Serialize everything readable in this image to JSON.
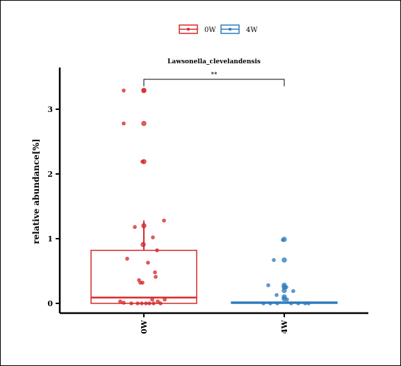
{
  "chart_data": {
    "type": "box",
    "title": "Lawsonella_clevelandensis",
    "ylabel": "relative abundance[%]",
    "xlabel": "",
    "categories": [
      "0W",
      "4W"
    ],
    "ylim": [
      -0.15,
      3.6
    ],
    "yticks": [
      "0",
      "1",
      "2",
      "3"
    ],
    "legend": {
      "position": "top-center",
      "entries": [
        {
          "name": "0W",
          "color": "#d62728"
        },
        {
          "name": "4W",
          "color": "#2e7bbf"
        }
      ]
    },
    "significance": {
      "groups": [
        "0W",
        "4W"
      ],
      "label": "**"
    },
    "boxes": [
      {
        "name": "0W",
        "color": "#d62728",
        "q1": 0.0,
        "median": 0.09,
        "q3": 0.82,
        "whisker_low": 0.0,
        "whisker_high": 1.28,
        "points": [
          [
            -0.29,
            3.29
          ],
          [
            0.0,
            3.29
          ],
          [
            0.0,
            3.29
          ],
          [
            -0.29,
            2.78
          ],
          [
            0.0,
            2.78
          ],
          [
            -0.02,
            2.19
          ],
          [
            0.0,
            2.19
          ],
          [
            0.29,
            1.28
          ],
          [
            -0.13,
            1.18
          ],
          [
            0.0,
            1.2
          ],
          [
            0.13,
            1.02
          ],
          [
            -0.01,
            0.91
          ],
          [
            0.19,
            0.82
          ],
          [
            -0.24,
            0.69
          ],
          [
            0.06,
            0.63
          ],
          [
            0.16,
            0.48
          ],
          [
            0.17,
            0.41
          ],
          [
            -0.07,
            0.36
          ],
          [
            -0.05,
            0.32
          ],
          [
            -0.02,
            0.32
          ],
          [
            0.12,
            0.06
          ],
          [
            -0.34,
            0.03
          ],
          [
            0.2,
            0.03
          ],
          [
            0.3,
            0.06
          ],
          [
            -0.29,
            0.01
          ],
          [
            -0.18,
            0.0
          ],
          [
            -0.09,
            0.0
          ],
          [
            -0.03,
            0.0
          ],
          [
            0.03,
            0.0
          ],
          [
            0.08,
            0.0
          ],
          [
            0.14,
            0.0
          ],
          [
            0.24,
            0.0
          ]
        ]
      },
      {
        "name": "4W",
        "color": "#2e7bbf",
        "q1": 0.0,
        "median": 0.01,
        "q3": 0.02,
        "whisker_low": 0.0,
        "whisker_high": 0.02,
        "points": [
          [
            0.0,
            0.99
          ],
          [
            -0.02,
            0.98
          ],
          [
            0.0,
            0.67
          ],
          [
            -0.15,
            0.67
          ],
          [
            0.0,
            0.28
          ],
          [
            0.0,
            0.25
          ],
          [
            0.03,
            0.25
          ],
          [
            -0.23,
            0.28
          ],
          [
            0.0,
            0.2
          ],
          [
            0.13,
            0.19
          ],
          [
            -0.11,
            0.13
          ],
          [
            0.0,
            0.1
          ],
          [
            0.04,
            0.06
          ],
          [
            0.0,
            0.07
          ],
          [
            -0.3,
            0.0
          ],
          [
            -0.2,
            0.0
          ],
          [
            -0.1,
            0.0
          ],
          [
            0.1,
            0.0
          ],
          [
            0.2,
            0.0
          ],
          [
            0.3,
            0.0
          ],
          [
            0.35,
            0.0
          ]
        ]
      }
    ]
  }
}
